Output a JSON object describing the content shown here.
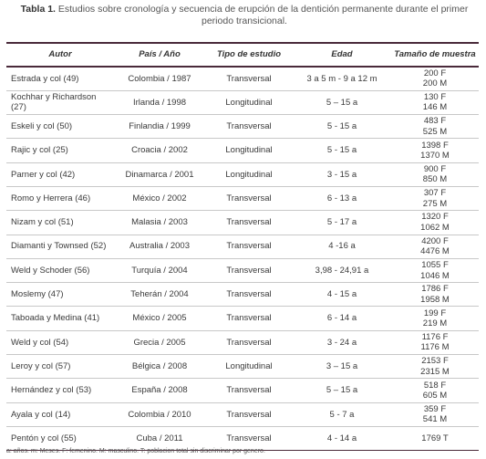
{
  "header": {
    "label": "Tabla 1.",
    "title": "Estudios sobre cronología y secuencia de erupción de la dentición permanente durante el primer periodo transicional."
  },
  "table": {
    "columns": [
      "Autor",
      "País / Año",
      "Tipo de estudio",
      "Edad",
      "Tamaño de muestra"
    ],
    "rows": [
      [
        "Estrada y col (49)",
        "Colombia / 1987",
        "Transversal",
        "3 a 5 m - 9 a 12 m",
        [
          "200 F",
          "200 M"
        ]
      ],
      [
        "Kochhar y Richardson (27)",
        "Irlanda / 1998",
        "Longitudinal",
        "5 – 15 a",
        [
          "130 F",
          "146 M"
        ]
      ],
      [
        "Eskeli y col (50)",
        "Finlandia / 1999",
        "Transversal",
        "5 - 15 a",
        [
          "483 F",
          "525 M"
        ]
      ],
      [
        "Rajic y col (25)",
        "Croacia / 2002",
        "Longitudinal",
        "5 - 15 a",
        [
          "1398 F",
          "1370 M"
        ]
      ],
      [
        "Parner y col (42)",
        "Dinamarca / 2001",
        "Longitudinal",
        "3 - 15 a",
        [
          "900 F",
          "850 M"
        ]
      ],
      [
        "Romo y Herrera (46)",
        "México / 2002",
        "Transversal",
        "6 - 13 a",
        [
          "307 F",
          "275 M"
        ]
      ],
      [
        "Nizam y col (51)",
        "Malasia / 2003",
        "Transversal",
        "5 - 17 a",
        [
          "1320 F",
          "1062 M"
        ]
      ],
      [
        "Diamanti y Townsed (52)",
        "Australia  /  2003",
        "Transversal",
        "4 -16 a",
        [
          "4200 F",
          "4476 M"
        ]
      ],
      [
        "Weld y Schoder (56)",
        "Turquía / 2004",
        "Transversal",
        "3,98 - 24,91 a",
        [
          "1055 F",
          "1046 M"
        ]
      ],
      [
        "Moslemy (47)",
        "Teherán / 2004",
        "Transversal",
        "4 - 15 a",
        [
          "1786 F",
          "1958 M"
        ]
      ],
      [
        "Taboada y Medina (41)",
        "México / 2005",
        "Transversal",
        "6 - 14 a",
        [
          "199 F",
          "219 M"
        ]
      ],
      [
        "Weld y col (54)",
        "Grecia / 2005",
        "Transversal",
        "3 - 24 a",
        [
          "1176 F",
          "1176 M"
        ]
      ],
      [
        "Leroy y col (57)",
        "Bélgica / 2008",
        "Longitudinal",
        "3 – 15 a",
        [
          "2153 F",
          "2315 M"
        ]
      ],
      [
        "Hernández y col (53)",
        "España / 2008",
        "Transversal",
        "5 – 15 a",
        [
          "518 F",
          "605 M"
        ]
      ],
      [
        "Ayala y col (14)",
        "Colombia / 2010",
        "Transversal",
        "5 - 7 a",
        [
          "359 F",
          "541 M"
        ]
      ],
      [
        "Pentón y col (55)",
        "Cuba / 2011",
        "Transversal",
        "4 - 14 a",
        [
          "1769 T"
        ]
      ]
    ]
  },
  "footnote": "a: años. m: Meses. F: femenino. M: masculino. T: poblacion total sin discriminar por genero."
}
